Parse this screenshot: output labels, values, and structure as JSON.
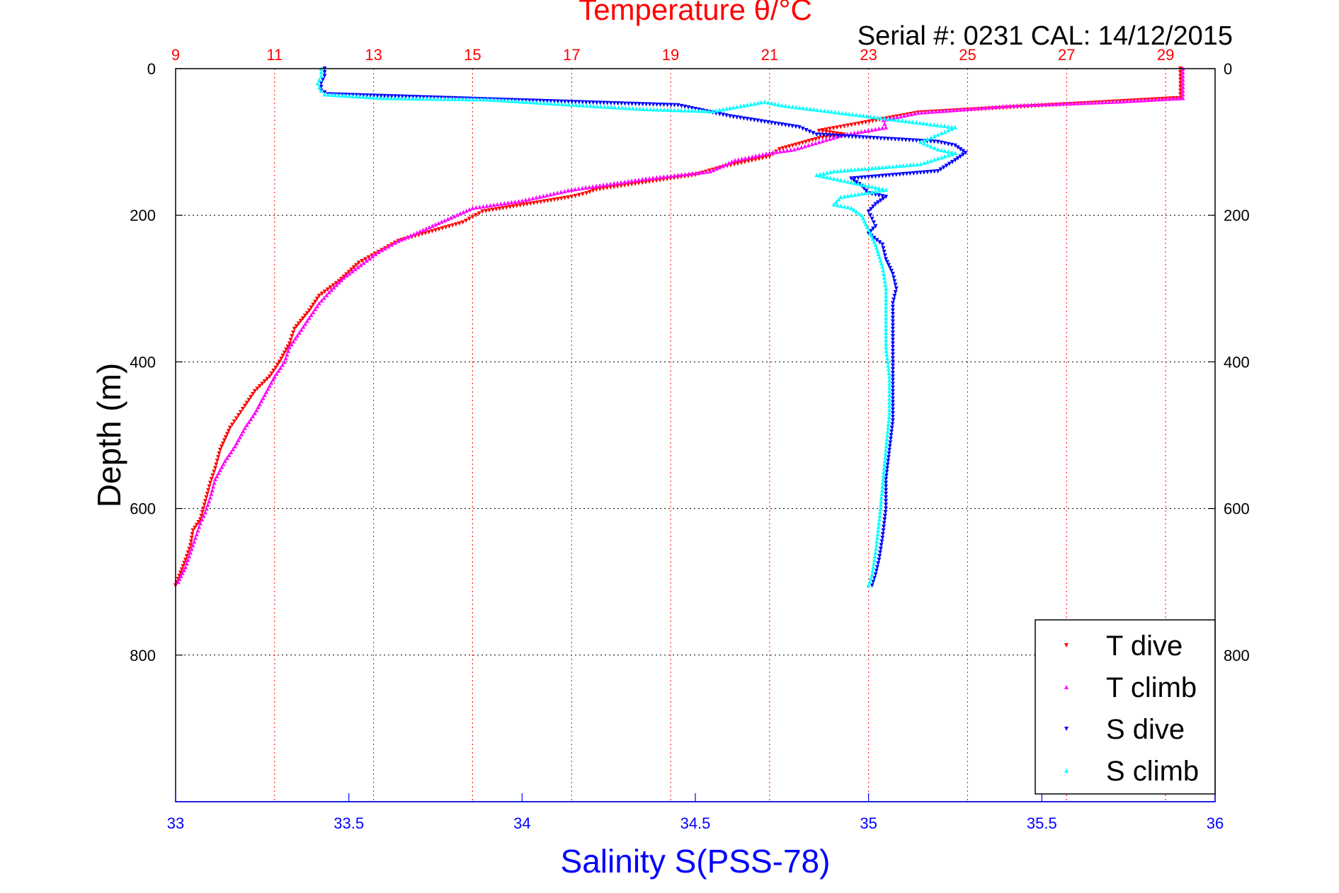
{
  "chart_data": {
    "type": "scatter",
    "title": "Temperature θ/°C",
    "subtitle": "Serial #: 0231  CAL: 14/12/2015",
    "ylabel": "Depth (m)",
    "xlabel_bottom": "Salinity S(PSS-78)",
    "xlabel_top": "Temperature θ/°C",
    "ylim": [
      0,
      1000
    ],
    "y_reversed": true,
    "y_ticks": [
      "0",
      "200",
      "400",
      "600",
      "800"
    ],
    "y_tick_values": [
      0,
      200,
      400,
      600,
      800
    ],
    "x_top_lim": [
      9,
      30
    ],
    "x_top_ticks": [
      "9",
      "11",
      "13",
      "15",
      "17",
      "19",
      "21",
      "23",
      "25",
      "27",
      "29"
    ],
    "x_top_tick_values": [
      9,
      11,
      13,
      15,
      17,
      19,
      21,
      23,
      25,
      27,
      29
    ],
    "x_bottom_lim": [
      33,
      36
    ],
    "x_bottom_ticks": [
      "33",
      "33.5",
      "34",
      "34.5",
      "35",
      "35.5",
      "36"
    ],
    "x_bottom_tick_values": [
      33,
      33.5,
      34,
      34.5,
      35,
      35.5,
      36
    ],
    "grid": true,
    "legend_position": "bottom-right",
    "colors": {
      "t_dive": "#ff0000",
      "t_climb": "#ff00ff",
      "s_dive": "#0000ff",
      "s_climb": "#00ffff",
      "axis_top": "#ff0000",
      "axis_bottom": "#0000ff"
    },
    "series": [
      {
        "name": "T dive",
        "axis": "temperature",
        "marker": "triangle-down",
        "color": "#ff0000",
        "points": [
          [
            29.3,
            0
          ],
          [
            29.3,
            40
          ],
          [
            24.0,
            60
          ],
          [
            22.8,
            75
          ],
          [
            22.0,
            85
          ],
          [
            22.5,
            90
          ],
          [
            22.0,
            95
          ],
          [
            21.2,
            110
          ],
          [
            21.0,
            120
          ],
          [
            20.0,
            135
          ],
          [
            19.5,
            145
          ],
          [
            17.5,
            165
          ],
          [
            17.3,
            170
          ],
          [
            17.0,
            175
          ],
          [
            15.2,
            195
          ],
          [
            14.8,
            210
          ],
          [
            13.5,
            235
          ],
          [
            13.1,
            250
          ],
          [
            12.7,
            265
          ],
          [
            12.3,
            290
          ],
          [
            11.9,
            310
          ],
          [
            11.7,
            330
          ],
          [
            11.4,
            355
          ],
          [
            11.3,
            375
          ],
          [
            11.1,
            400
          ],
          [
            10.9,
            420
          ],
          [
            10.6,
            440
          ],
          [
            10.4,
            460
          ],
          [
            10.1,
            490
          ],
          [
            9.9,
            520
          ],
          [
            9.8,
            545
          ],
          [
            9.7,
            565
          ],
          [
            9.6,
            590
          ],
          [
            9.5,
            615
          ],
          [
            9.35,
            630
          ],
          [
            9.3,
            650
          ],
          [
            9.2,
            670
          ],
          [
            9.0,
            705
          ]
        ]
      },
      {
        "name": "T climb",
        "axis": "temperature",
        "marker": "triangle-up",
        "color": "#ff00ff",
        "points": [
          [
            29.35,
            0
          ],
          [
            29.35,
            40
          ],
          [
            28.0,
            45
          ],
          [
            26.0,
            50
          ],
          [
            24.0,
            60
          ],
          [
            23.3,
            70
          ],
          [
            23.35,
            80
          ],
          [
            22.5,
            90
          ],
          [
            22.0,
            100
          ],
          [
            21.5,
            110
          ],
          [
            21.0,
            115
          ],
          [
            20.3,
            125
          ],
          [
            19.8,
            140
          ],
          [
            18.5,
            150
          ],
          [
            17.0,
            165
          ],
          [
            16.0,
            180
          ],
          [
            15.0,
            190
          ],
          [
            14.5,
            205
          ],
          [
            14.0,
            220
          ],
          [
            13.5,
            235
          ],
          [
            13.1,
            250
          ],
          [
            12.8,
            265
          ],
          [
            12.4,
            285
          ],
          [
            12.1,
            305
          ],
          [
            11.9,
            320
          ],
          [
            11.7,
            340
          ],
          [
            11.5,
            360
          ],
          [
            11.3,
            380
          ],
          [
            11.2,
            400
          ],
          [
            11.0,
            420
          ],
          [
            10.8,
            445
          ],
          [
            10.6,
            470
          ],
          [
            10.4,
            490
          ],
          [
            10.2,
            515
          ],
          [
            10.0,
            535
          ],
          [
            9.8,
            560
          ],
          [
            9.7,
            585
          ],
          [
            9.6,
            605
          ],
          [
            9.5,
            620
          ],
          [
            9.4,
            640
          ],
          [
            9.3,
            660
          ],
          [
            9.2,
            680
          ],
          [
            9.05,
            700
          ]
        ]
      },
      {
        "name": "S dive",
        "axis": "salinity",
        "marker": "triangle-down",
        "color": "#0000ff",
        "points": [
          [
            33.43,
            0
          ],
          [
            33.43,
            10
          ],
          [
            33.42,
            20
          ],
          [
            33.42,
            30
          ],
          [
            33.44,
            35
          ],
          [
            34.45,
            50
          ],
          [
            34.5,
            55
          ],
          [
            34.55,
            60
          ],
          [
            34.6,
            65
          ],
          [
            34.8,
            80
          ],
          [
            34.85,
            90
          ],
          [
            35.2,
            100
          ],
          [
            35.25,
            105
          ],
          [
            35.28,
            115
          ],
          [
            35.25,
            125
          ],
          [
            35.2,
            140
          ],
          [
            34.95,
            150
          ],
          [
            34.98,
            160
          ],
          [
            35.0,
            170
          ],
          [
            35.05,
            175
          ],
          [
            35.02,
            185
          ],
          [
            35.0,
            195
          ],
          [
            35.01,
            205
          ],
          [
            35.02,
            215
          ],
          [
            35.0,
            225
          ],
          [
            35.04,
            240
          ],
          [
            35.05,
            260
          ],
          [
            35.07,
            280
          ],
          [
            35.08,
            300
          ],
          [
            35.07,
            320
          ],
          [
            35.07,
            360
          ],
          [
            35.07,
            400
          ],
          [
            35.07,
            440
          ],
          [
            35.07,
            480
          ],
          [
            35.06,
            520
          ],
          [
            35.05,
            560
          ],
          [
            35.05,
            600
          ],
          [
            35.04,
            640
          ],
          [
            35.03,
            670
          ],
          [
            35.02,
            690
          ],
          [
            35.01,
            705
          ]
        ]
      },
      {
        "name": "S climb",
        "axis": "salinity",
        "marker": "triangle-up",
        "color": "#00ffff",
        "points": [
          [
            33.42,
            0
          ],
          [
            33.42,
            10
          ],
          [
            33.41,
            20
          ],
          [
            33.42,
            30
          ],
          [
            33.43,
            35
          ],
          [
            33.6,
            40
          ],
          [
            33.9,
            42
          ],
          [
            34.35,
            55
          ],
          [
            34.55,
            58
          ],
          [
            34.7,
            45
          ],
          [
            34.75,
            50
          ],
          [
            35.25,
            80
          ],
          [
            35.2,
            90
          ],
          [
            35.15,
            100
          ],
          [
            35.2,
            110
          ],
          [
            35.25,
            115
          ],
          [
            35.15,
            130
          ],
          [
            34.9,
            140
          ],
          [
            34.85,
            145
          ],
          [
            35.05,
            165
          ],
          [
            34.92,
            175
          ],
          [
            34.9,
            185
          ],
          [
            34.95,
            190
          ],
          [
            34.98,
            200
          ],
          [
            35.0,
            220
          ],
          [
            35.02,
            240
          ],
          [
            35.04,
            270
          ],
          [
            35.05,
            300
          ],
          [
            35.05,
            340
          ],
          [
            35.05,
            380
          ],
          [
            35.06,
            420
          ],
          [
            35.06,
            470
          ],
          [
            35.05,
            520
          ],
          [
            35.04,
            570
          ],
          [
            35.03,
            620
          ],
          [
            35.02,
            660
          ],
          [
            35.01,
            690
          ],
          [
            35.0,
            705
          ]
        ]
      }
    ]
  }
}
